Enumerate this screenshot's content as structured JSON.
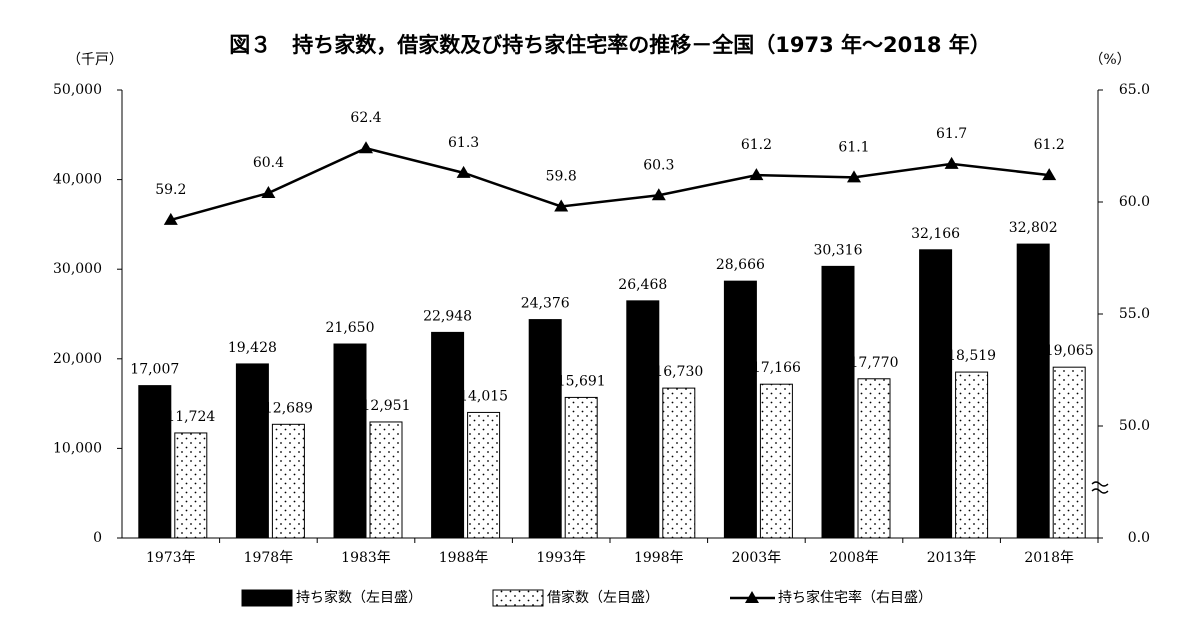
{
  "chart_data": {
    "type": "bar-line",
    "title": "図３　持ち家数，借家数及び持ち家住宅率の推移－全国（1973 年～2018 年）",
    "y_label": "（千戸）",
    "y2_label": "（%）",
    "categories": [
      "1973年",
      "1978年",
      "1983年",
      "1988年",
      "1993年",
      "1998年",
      "2003年",
      "2008年",
      "2013年",
      "2018年"
    ],
    "series": [
      {
        "name": "持ち家数（左目盛）",
        "type": "bar",
        "color": "#000000",
        "values": [
          17007,
          19428,
          21650,
          22948,
          24376,
          26468,
          28666,
          30316,
          32166,
          32802
        ],
        "value_labels": [
          "17,007",
          "19,428",
          "21,650",
          "22,948",
          "24,376",
          "26,468",
          "28,666",
          "30,316",
          "32,166",
          "32,802"
        ]
      },
      {
        "name": "借家数（左目盛）",
        "type": "bar",
        "color": "#000000",
        "pattern": "dots",
        "values": [
          11724,
          12689,
          12951,
          14015,
          15691,
          16730,
          17166,
          17770,
          18519,
          19065
        ],
        "value_labels": [
          "11,724",
          "12,689",
          "12,951",
          "14,015",
          "15,691",
          "16,730",
          "17,166",
          "17,770",
          "18,519",
          "19,065"
        ]
      },
      {
        "name": "持ち家住宅率（右目盛）",
        "type": "line",
        "axis": "y2",
        "color": "#000000",
        "marker": "triangle",
        "values": [
          59.2,
          60.4,
          62.4,
          61.3,
          59.8,
          60.3,
          61.2,
          61.1,
          61.7,
          61.2
        ]
      }
    ],
    "ylim": [
      0,
      50000
    ],
    "yticks": [
      0,
      {
        "value": 10000,
        "label": "10,000"
      },
      {
        "value": 20000,
        "label": "20,000"
      },
      {
        "value": 30000,
        "label": "30,000"
      },
      {
        "value": 40000,
        "label": "40,000"
      },
      {
        "value": 50000,
        "label": "50,000"
      }
    ],
    "y2lim": [
      0,
      65
    ],
    "y2_break": [
      0,
      45
    ],
    "y2ticks": [
      {
        "value": 0,
        "label": "0.0"
      },
      {
        "value": 50,
        "label": "50.0"
      },
      {
        "value": 55,
        "label": "55.0"
      },
      {
        "value": 60,
        "label": "60.0"
      },
      {
        "value": 65,
        "label": "65.0"
      }
    ],
    "grid": false,
    "legend": "bottom"
  }
}
